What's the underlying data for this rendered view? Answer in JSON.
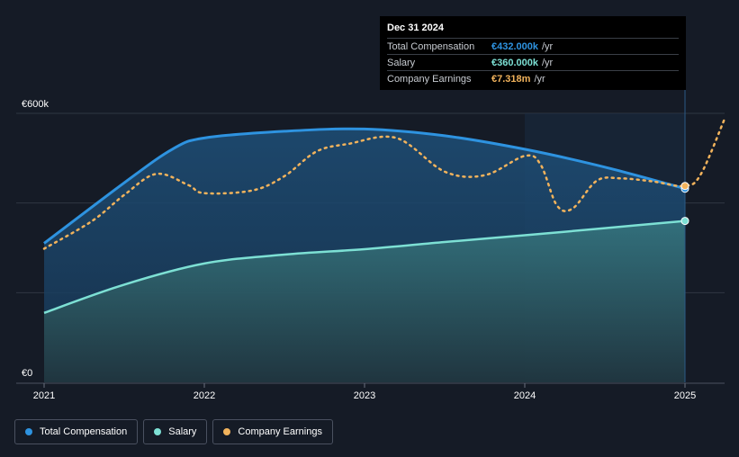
{
  "chart_data": {
    "type": "area",
    "y_axis": {
      "min_label": "€0",
      "max_label": "€600k",
      "ylim": [
        0,
        600000
      ]
    },
    "x_ticks": [
      "2021",
      "2022",
      "2023",
      "2024",
      "2025"
    ],
    "xlim": [
      2021.0,
      2025.25
    ],
    "grid": true,
    "series": [
      {
        "name": "Total Compensation",
        "color": "#2e93e0",
        "x": [
          2021.0,
          2021.5,
          2021.8,
          2022.0,
          2022.5,
          2023.0,
          2023.5,
          2024.0,
          2024.5,
          2025.0
        ],
        "values": [
          310000,
          445000,
          520000,
          545000,
          560000,
          565000,
          550000,
          520000,
          480000,
          432000
        ]
      },
      {
        "name": "Salary",
        "color": "#7de0d4",
        "x": [
          2021.0,
          2021.5,
          2022.0,
          2022.5,
          2023.0,
          2023.5,
          2024.0,
          2024.5,
          2025.0
        ],
        "values": [
          155000,
          218000,
          265000,
          285000,
          297000,
          313000,
          328000,
          344000,
          360000
        ]
      },
      {
        "name": "Company Earnings",
        "color": "#f2b35c",
        "dashed": true,
        "x": [
          2021.0,
          2021.3,
          2021.5,
          2021.7,
          2021.9,
          2022.0,
          2022.3,
          2022.5,
          2022.7,
          2022.9,
          2023.2,
          2023.5,
          2023.75,
          2024.0,
          2024.1,
          2024.2,
          2024.3,
          2024.45,
          2024.6,
          2024.8,
          2025.0,
          2025.1,
          2025.25
        ],
        "values": [
          298000,
          360000,
          418000,
          465000,
          440000,
          422000,
          428000,
          460000,
          515000,
          532000,
          545000,
          470000,
          462000,
          505000,
          485000,
          395000,
          388000,
          450000,
          455000,
          448000,
          438000,
          465000,
          590000
        ]
      }
    ],
    "highlight_start": 2024.0,
    "tooltip": {
      "date": "Dec 31 2024",
      "rows": [
        {
          "label": "Total Compensation",
          "value": "€432.000k",
          "unit": "/yr",
          "color": "#2e93e0"
        },
        {
          "label": "Salary",
          "value": "€360.000k",
          "unit": "/yr",
          "color": "#7de0d4"
        },
        {
          "label": "Company Earnings",
          "value": "€7.318m",
          "unit": "/yr",
          "color": "#f2b35c"
        }
      ]
    }
  },
  "legend": [
    {
      "label": "Total Compensation",
      "color": "#2e93e0"
    },
    {
      "label": "Salary",
      "color": "#7de0d4"
    },
    {
      "label": "Company Earnings",
      "color": "#f2b35c"
    }
  ]
}
